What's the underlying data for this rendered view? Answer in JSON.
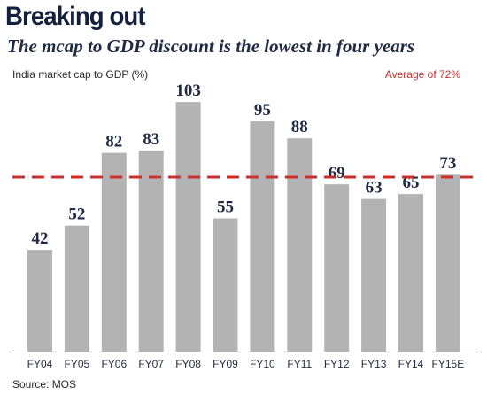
{
  "header": {
    "title": "Breaking out",
    "subtitle": "The mcap to GDP discount is the lowest in four years"
  },
  "footer": {
    "source": "Source: MOS"
  },
  "colors": {
    "bar": "#b3b3b3",
    "average_line": "#c9302c",
    "text": "#1f2a44"
  },
  "chart_data": {
    "type": "bar",
    "title": "Breaking out",
    "subtitle": "The mcap to GDP discount is the lowest in four years",
    "ylabel": "India market cap to GDP (%)",
    "xlabel": "",
    "categories": [
      "FY04",
      "FY05",
      "FY06",
      "FY07",
      "FY08",
      "FY09",
      "FY10",
      "FY11",
      "FY12",
      "FY13",
      "FY14",
      "FY15E"
    ],
    "values": [
      42,
      52,
      82,
      83,
      103,
      55,
      95,
      88,
      69,
      63,
      65,
      73
    ],
    "ylim": [
      0,
      110
    ],
    "grid": false,
    "data_labels": true,
    "reference_line": {
      "value": 72,
      "label": "Average of 72%",
      "style": "dashed"
    }
  }
}
